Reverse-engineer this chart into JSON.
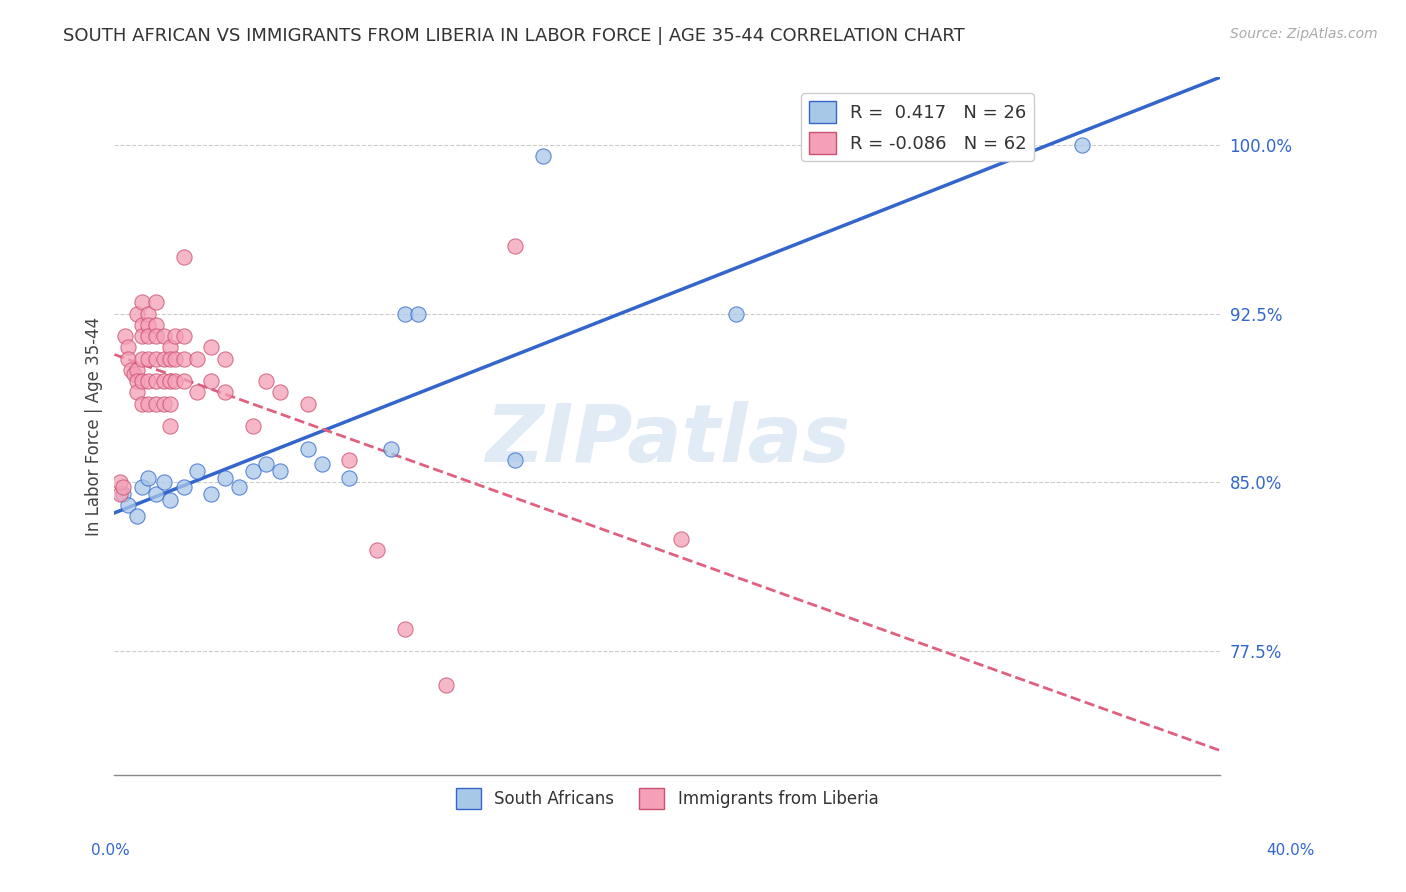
{
  "title": "SOUTH AFRICAN VS IMMIGRANTS FROM LIBERIA IN LABOR FORCE | AGE 35-44 CORRELATION CHART",
  "source": "Source: ZipAtlas.com",
  "ylabel_ticks": [
    77.5,
    85.0,
    92.5,
    100.0
  ],
  "ylabel_labels": [
    "77.5%",
    "85.0%",
    "92.5%",
    "100.0%"
  ],
  "xmin": 0.0,
  "xmax": 40.0,
  "ymin": 72.0,
  "ymax": 103.0,
  "legend_r_sa": "0.417",
  "legend_n_sa": "26",
  "legend_r_lib": "-0.086",
  "legend_n_lib": "62",
  "color_sa": "#a8c8e8",
  "color_lib": "#f4a0b8",
  "trendline_sa_color": "#3366cc",
  "trendline_lib_color": "#e06080",
  "watermark_text": "ZIPatlas",
  "sa_points": [
    [
      0.3,
      84.5
    ],
    [
      0.5,
      84.0
    ],
    [
      0.8,
      83.5
    ],
    [
      1.0,
      84.8
    ],
    [
      1.2,
      85.2
    ],
    [
      1.5,
      84.5
    ],
    [
      1.8,
      85.0
    ],
    [
      2.0,
      84.2
    ],
    [
      2.5,
      84.8
    ],
    [
      3.0,
      85.5
    ],
    [
      3.5,
      84.5
    ],
    [
      4.0,
      85.2
    ],
    [
      4.5,
      84.8
    ],
    [
      5.0,
      85.5
    ],
    [
      5.5,
      85.8
    ],
    [
      6.0,
      85.5
    ],
    [
      7.0,
      86.5
    ],
    [
      7.5,
      85.8
    ],
    [
      8.5,
      85.2
    ],
    [
      10.0,
      86.5
    ],
    [
      10.5,
      92.5
    ],
    [
      11.0,
      92.5
    ],
    [
      14.5,
      86.0
    ],
    [
      15.5,
      99.5
    ],
    [
      22.5,
      92.5
    ],
    [
      35.0,
      100.0
    ]
  ],
  "lib_points": [
    [
      0.2,
      84.5
    ],
    [
      0.2,
      85.0
    ],
    [
      0.3,
      84.8
    ],
    [
      0.4,
      91.5
    ],
    [
      0.5,
      91.0
    ],
    [
      0.5,
      90.5
    ],
    [
      0.6,
      90.0
    ],
    [
      0.7,
      89.8
    ],
    [
      0.8,
      90.0
    ],
    [
      0.8,
      89.5
    ],
    [
      0.8,
      89.0
    ],
    [
      0.8,
      92.5
    ],
    [
      1.0,
      93.0
    ],
    [
      1.0,
      92.0
    ],
    [
      1.0,
      91.5
    ],
    [
      1.0,
      90.5
    ],
    [
      1.0,
      89.5
    ],
    [
      1.0,
      88.5
    ],
    [
      1.2,
      92.5
    ],
    [
      1.2,
      92.0
    ],
    [
      1.2,
      91.5
    ],
    [
      1.2,
      90.5
    ],
    [
      1.2,
      89.5
    ],
    [
      1.2,
      88.5
    ],
    [
      1.5,
      93.0
    ],
    [
      1.5,
      92.0
    ],
    [
      1.5,
      91.5
    ],
    [
      1.5,
      90.5
    ],
    [
      1.5,
      89.5
    ],
    [
      1.5,
      88.5
    ],
    [
      1.8,
      91.5
    ],
    [
      1.8,
      90.5
    ],
    [
      1.8,
      89.5
    ],
    [
      1.8,
      88.5
    ],
    [
      2.0,
      91.0
    ],
    [
      2.0,
      90.5
    ],
    [
      2.0,
      89.5
    ],
    [
      2.0,
      88.5
    ],
    [
      2.0,
      87.5
    ],
    [
      2.2,
      91.5
    ],
    [
      2.2,
      90.5
    ],
    [
      2.2,
      89.5
    ],
    [
      2.5,
      95.0
    ],
    [
      2.5,
      91.5
    ],
    [
      2.5,
      90.5
    ],
    [
      2.5,
      89.5
    ],
    [
      3.0,
      90.5
    ],
    [
      3.0,
      89.0
    ],
    [
      3.5,
      91.0
    ],
    [
      3.5,
      89.5
    ],
    [
      4.0,
      90.5
    ],
    [
      4.0,
      89.0
    ],
    [
      5.0,
      87.5
    ],
    [
      5.5,
      89.5
    ],
    [
      6.0,
      89.0
    ],
    [
      7.0,
      88.5
    ],
    [
      8.5,
      86.0
    ],
    [
      9.5,
      82.0
    ],
    [
      10.5,
      78.5
    ],
    [
      12.0,
      76.0
    ],
    [
      14.5,
      95.5
    ],
    [
      20.5,
      82.5
    ]
  ]
}
